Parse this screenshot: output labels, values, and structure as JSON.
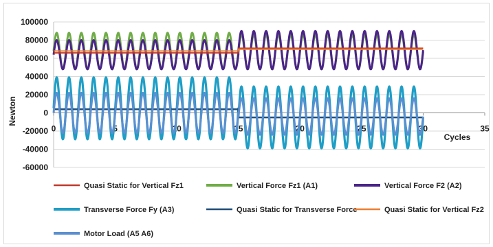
{
  "chart_data": {
    "type": "line",
    "xlabel": "Cycles",
    "ylabel": "Newton",
    "xlim": [
      0,
      35
    ],
    "ylim": [
      -60000,
      100000
    ],
    "x_ticks": [
      0,
      5,
      10,
      15,
      20,
      25,
      30,
      35
    ],
    "y_ticks": [
      -60000,
      -40000,
      -20000,
      0,
      20000,
      40000,
      60000,
      80000,
      100000
    ],
    "grid": "horizontal",
    "legend_position": "bottom",
    "series": [
      {
        "name": "Quasi Static for Vertical Fz1",
        "color": "#c0392b",
        "kind": "step",
        "segments": [
          {
            "x0": 0,
            "x1": 15,
            "value": 66000
          },
          {
            "x0": 15,
            "x1": 30,
            "value": 71000
          }
        ]
      },
      {
        "name": "Vertical Force Fz1 (A1)",
        "color": "#70ad47",
        "kind": "oscillation",
        "segments": [
          {
            "x0": 0,
            "x1": 15,
            "mean": 68000,
            "amplitude": 20000,
            "cycles": 15
          },
          {
            "x0": 15,
            "x1": 30,
            "mean": 67000,
            "amplitude": 19000,
            "cycles": 15
          }
        ]
      },
      {
        "name": "Vertical Force F2 (A2)",
        "color": "#4b2489",
        "kind": "oscillation",
        "segments": [
          {
            "x0": 0,
            "x1": 15,
            "mean": 64000,
            "amplitude": 16000,
            "cycles": 15
          },
          {
            "x0": 15,
            "x1": 30,
            "mean": 69000,
            "amplitude": 21000,
            "cycles": 15
          }
        ]
      },
      {
        "name": "Transverse Force Fy (A3)",
        "color": "#1f9ec6",
        "kind": "oscillation",
        "segments": [
          {
            "x0": 0,
            "x1": 15,
            "mean": 5000,
            "amplitude": 34000,
            "cycles": 15
          },
          {
            "x0": 15,
            "x1": 30,
            "mean": -5000,
            "amplitude": 34000,
            "cycles": 15
          }
        ]
      },
      {
        "name": "Quasi Static for Transverse Force",
        "color": "#1f4e79",
        "kind": "step",
        "segments": [
          {
            "x0": 0,
            "x1": 15,
            "value": 4000
          },
          {
            "x0": 15,
            "x1": 30,
            "value": -5000
          }
        ]
      },
      {
        "name": "Quasi Static for Vertical Fz2",
        "color": "#ed7d31",
        "kind": "step",
        "segments": [
          {
            "x0": 0,
            "x1": 15,
            "value": 68000
          },
          {
            "x0": 15,
            "x1": 30,
            "value": 70000
          }
        ]
      },
      {
        "name": "Motor Load (A5 A6)",
        "color": "#5b8fd0",
        "kind": "oscillation",
        "segments": [
          {
            "x0": 0,
            "x1": 15,
            "mean": 0,
            "amplitude": 22000,
            "cycles": 15
          },
          {
            "x0": 15,
            "x1": 30,
            "mean": -4000,
            "amplitude": 20000,
            "cycles": 15
          }
        ]
      }
    ]
  }
}
